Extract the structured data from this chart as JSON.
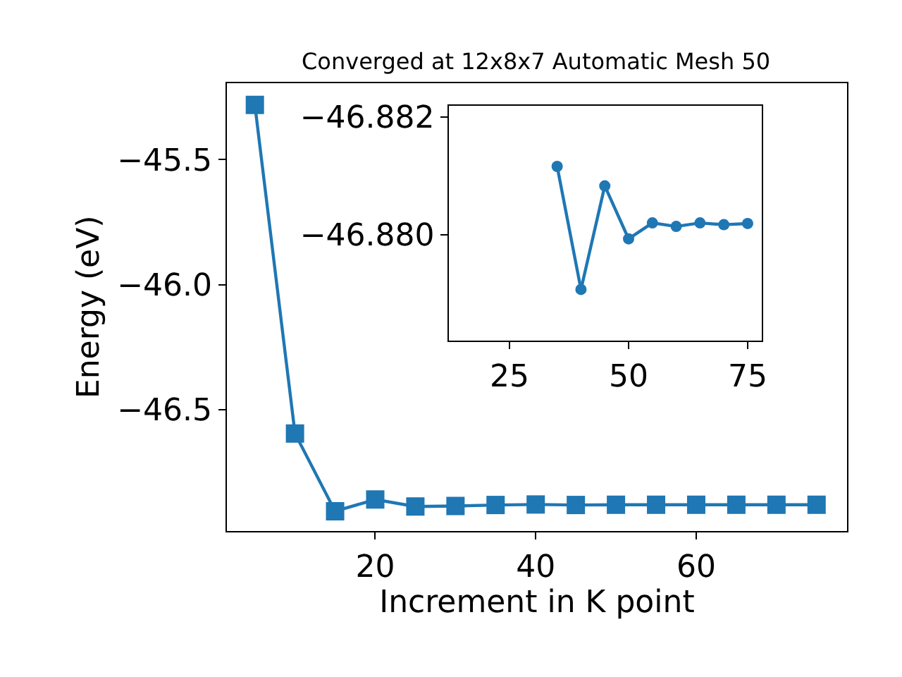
{
  "chart_data": [
    {
      "type": "line",
      "title": "Converged at 12x8x7 Automatic Mesh 50",
      "xlabel": "Increment in K point",
      "ylabel": "Energy (eV)",
      "x": [
        5,
        10,
        15,
        20,
        25,
        30,
        35,
        40,
        45,
        50,
        55,
        60,
        65,
        70,
        75
      ],
      "series": [
        {
          "color": "#1f77b4",
          "values": [
            -45.282,
            -46.595,
            -46.906,
            -46.859,
            -46.887,
            -46.885,
            -46.881,
            -46.879,
            -46.881,
            -46.88,
            -46.88,
            -46.88,
            -46.88,
            -46.88,
            -46.88
          ]
        }
      ],
      "xlim": [
        1.5,
        78.8
      ],
      "ylim": [
        -46.985,
        -45.194
      ],
      "xticks": [
        20,
        40,
        60
      ],
      "yticks": [
        {
          "value": -45.5,
          "label": "−45.5"
        },
        {
          "value": -46.0,
          "label": "−46.0"
        },
        {
          "value": -46.5,
          "label": "−46.5"
        }
      ],
      "marker": "square",
      "line_style": "solid"
    },
    {
      "type": "line",
      "x": [
        35,
        40,
        45,
        50,
        55,
        60,
        65,
        70,
        75
      ],
      "series": [
        {
          "color": "#1f77b4",
          "values": [
            -46.88116,
            -46.87907,
            -46.88083,
            -46.87993,
            -46.8802,
            -46.88014,
            -46.8802,
            -46.88017,
            -46.88019
          ]
        }
      ],
      "xlim": [
        12.3,
        78.0
      ],
      "ylim": [
        -46.8782,
        -46.88219
      ],
      "xticks": [
        25,
        50,
        75
      ],
      "yticks": [
        {
          "value": -46.882,
          "label": "−46.882"
        },
        {
          "value": -46.88,
          "label": "−46.880"
        }
      ],
      "marker": "circle",
      "line_style": "solid"
    }
  ]
}
